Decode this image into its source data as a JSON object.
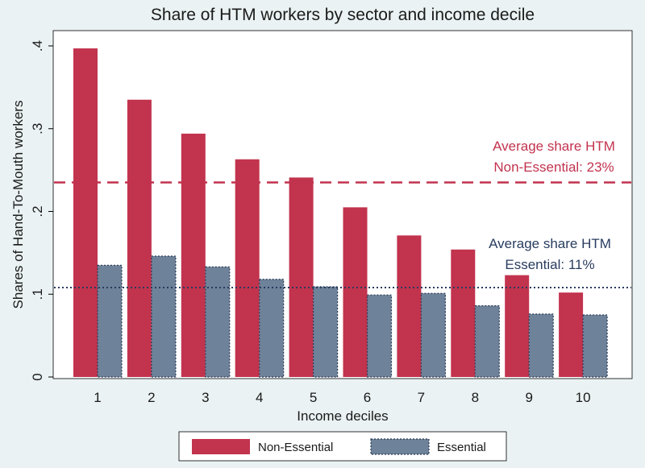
{
  "chart_data": {
    "type": "bar",
    "title": "Share of HTM workers by sector and income decile",
    "xlabel": "Income deciles",
    "ylabel": "Shares of Hand-To-Mouth workers",
    "categories": [
      "1",
      "2",
      "3",
      "4",
      "5",
      "6",
      "7",
      "8",
      "9",
      "10"
    ],
    "ylim": [
      0,
      0.4
    ],
    "yticks": [
      0,
      0.1,
      0.2,
      0.3,
      0.4
    ],
    "ytick_labels": [
      "0",
      ".1",
      ".2",
      ".3",
      ".4"
    ],
    "grid": false,
    "legend_position": "bottom",
    "series": [
      {
        "name": "Non-Essential",
        "color": "#c2334e",
        "values": [
          0.397,
          0.335,
          0.294,
          0.263,
          0.241,
          0.205,
          0.171,
          0.154,
          0.123,
          0.102
        ]
      },
      {
        "name": "Essential",
        "color": "#6e8299",
        "values": [
          0.135,
          0.146,
          0.133,
          0.118,
          0.109,
          0.099,
          0.101,
          0.086,
          0.076,
          0.075
        ]
      }
    ],
    "reference_lines": [
      {
        "value": 0.235,
        "style": "dashed",
        "color": "#c2334e",
        "label_lines": [
          "Average share HTM",
          "Non-Essential: 23%"
        ]
      },
      {
        "value": 0.108,
        "style": "dotted",
        "color": "#283c5f",
        "label_lines": [
          "Average share HTM",
          "Essential: 11%"
        ]
      }
    ]
  }
}
